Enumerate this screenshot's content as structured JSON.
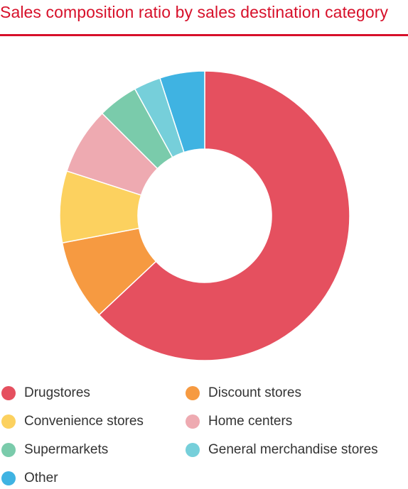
{
  "chart_data": {
    "type": "pie",
    "title": "Sales composition ratio by sales destination category",
    "donut": true,
    "legend_placement": "bottom",
    "categories": [
      "Drugstores",
      "Discount stores",
      "Convenience stores",
      "Home centers",
      "Supermarkets",
      "General merchandise stores",
      "Other"
    ],
    "values": [
      63.0,
      9.0,
      8.0,
      7.5,
      4.5,
      3.0,
      5.0
    ],
    "colors": [
      "#e5505f",
      "#f69a41",
      "#fcd15f",
      "#eeaab1",
      "#7acbab",
      "#76cfda",
      "#3fb3e2"
    ]
  }
}
